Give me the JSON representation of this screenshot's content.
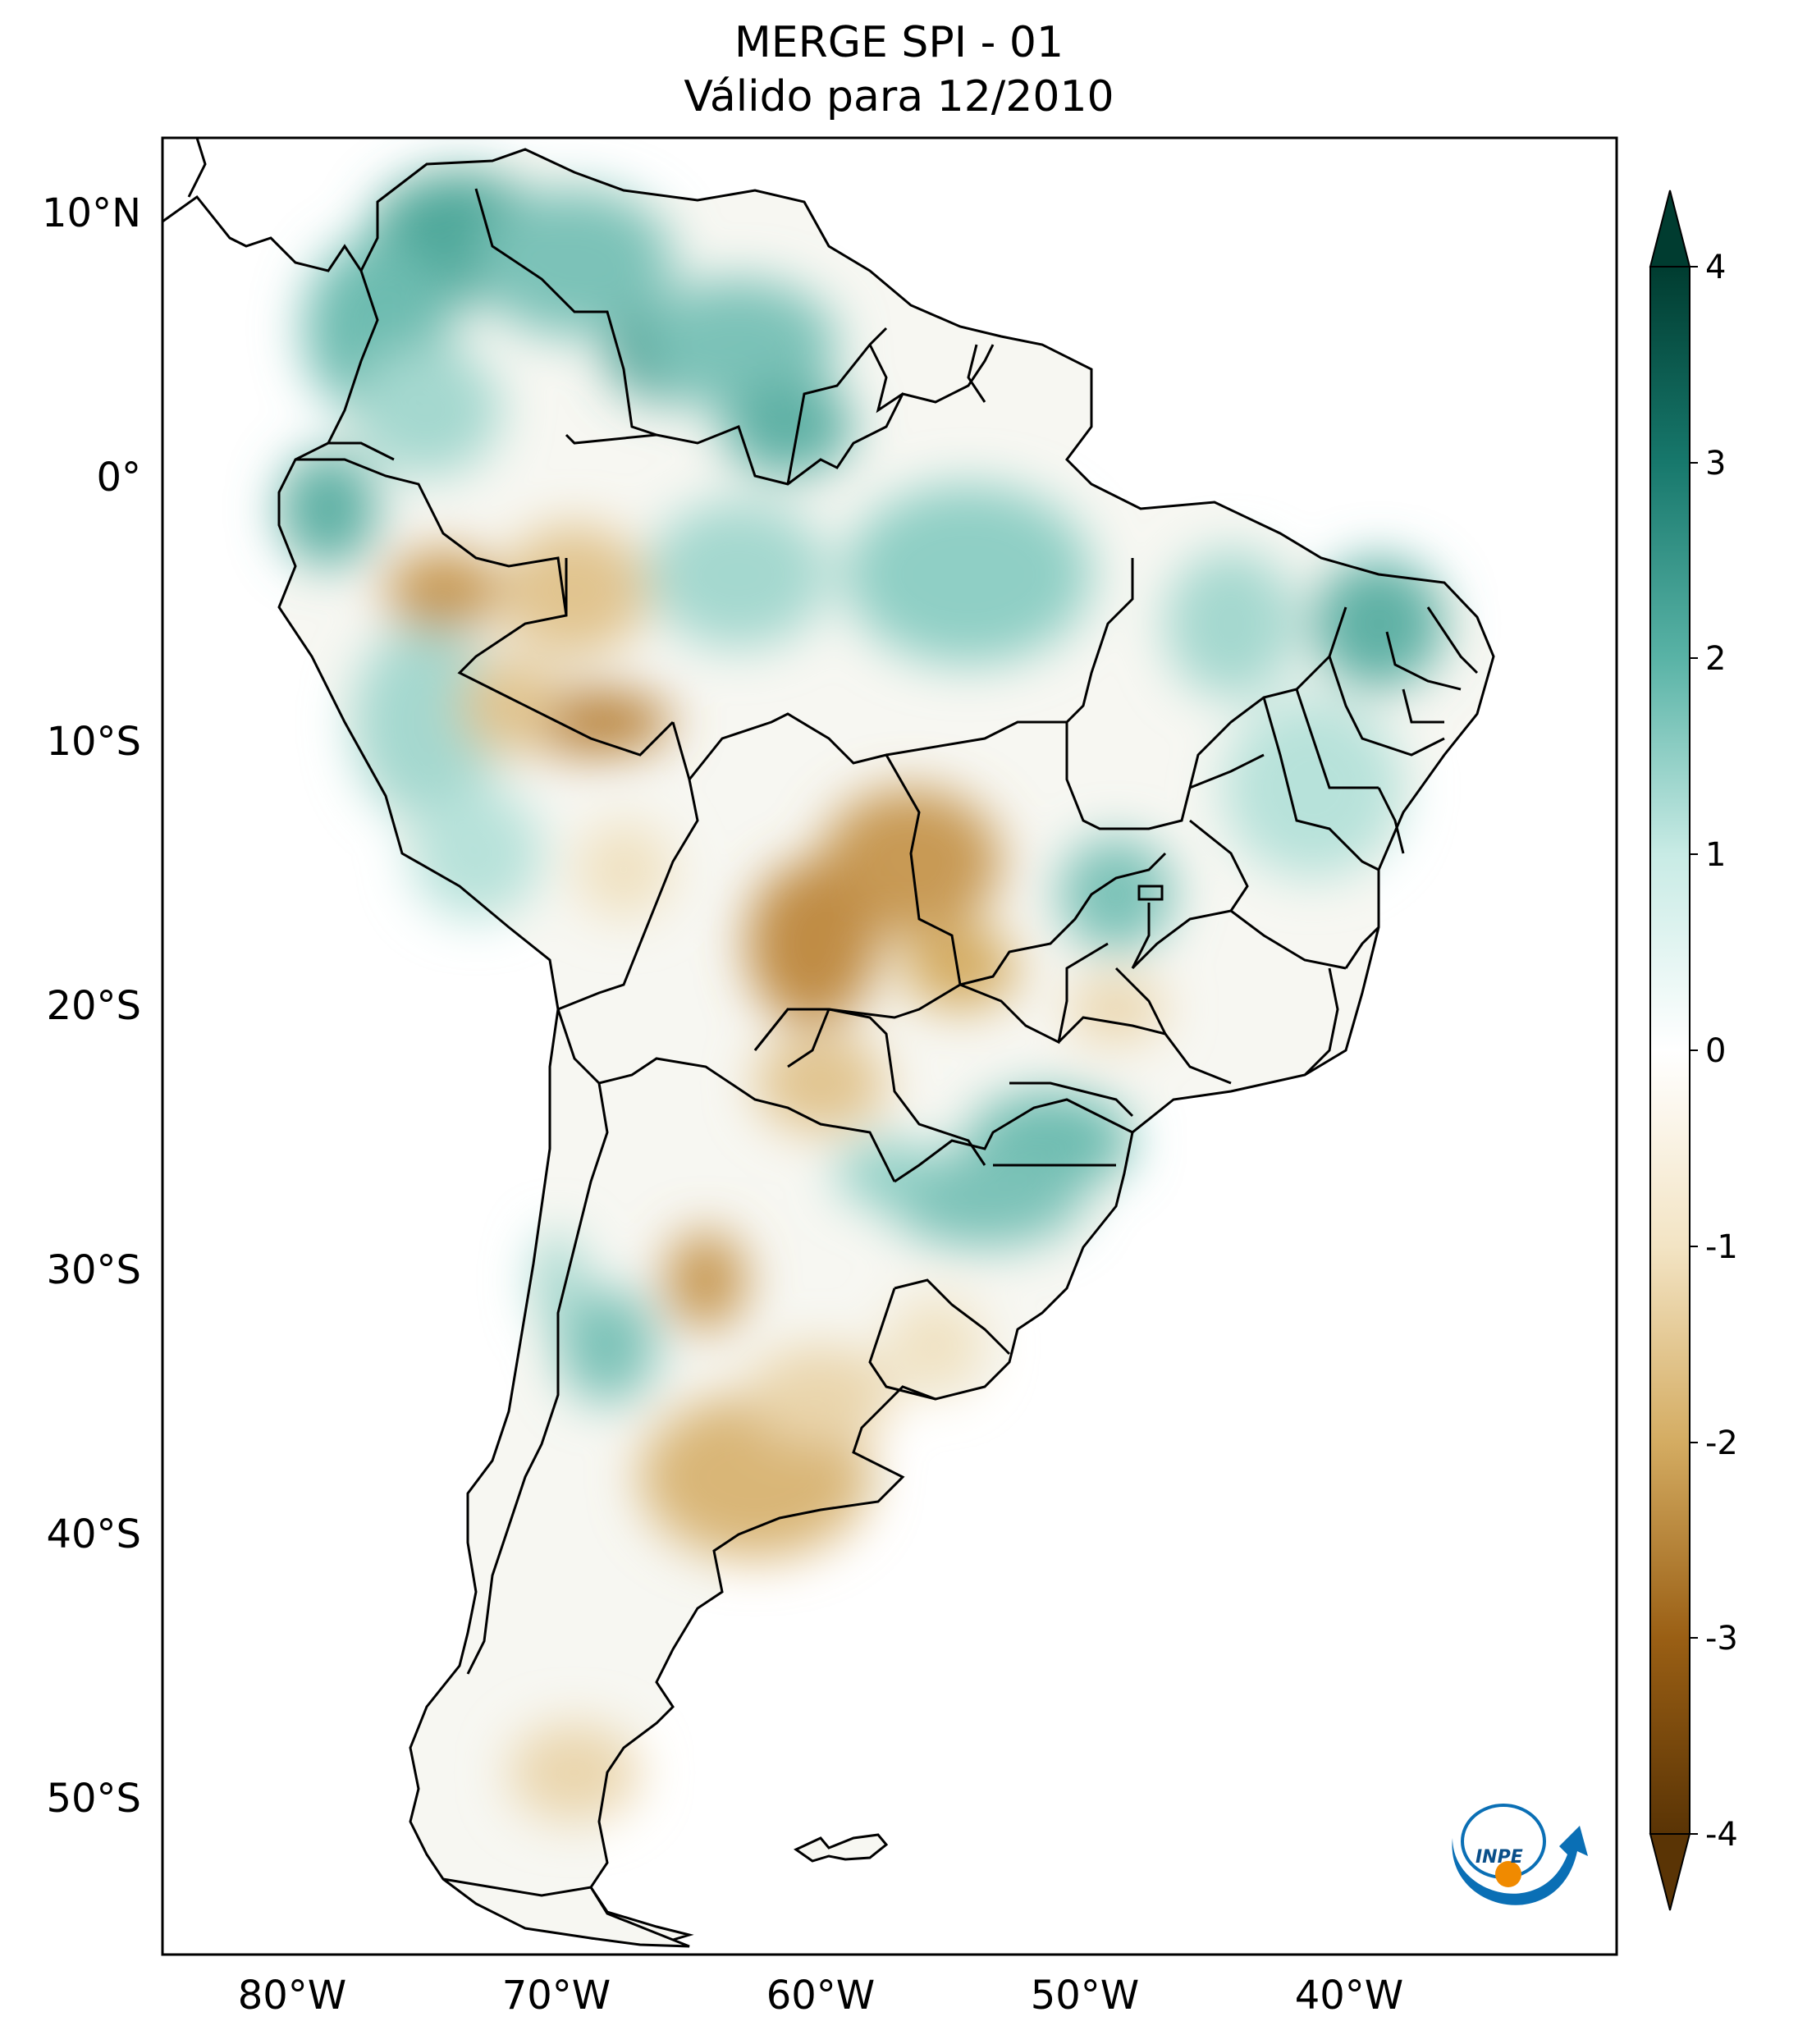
{
  "title": {
    "line1": "MERGE   SPI - 01",
    "line2": "Válido para 12/2010"
  },
  "map": {
    "region": "South America",
    "projection": "Plate Carree",
    "lon_range": [
      -85,
      -29
    ],
    "lat_range": [
      -56,
      13
    ],
    "lat_ticks": [
      {
        "value": 10,
        "label": "10°N"
      },
      {
        "value": 0,
        "label": "0°"
      },
      {
        "value": -10,
        "label": "10°S"
      },
      {
        "value": -20,
        "label": "20°S"
      },
      {
        "value": -30,
        "label": "30°S"
      },
      {
        "value": -40,
        "label": "40°S"
      },
      {
        "value": -50,
        "label": "50°S"
      }
    ],
    "lon_ticks": [
      {
        "value": -80,
        "label": "80°W"
      },
      {
        "value": -70,
        "label": "70°W"
      },
      {
        "value": -60,
        "label": "60°W"
      },
      {
        "value": -50,
        "label": "50°W"
      },
      {
        "value": -40,
        "label": "40°W"
      }
    ]
  },
  "colorbar": {
    "min": -4,
    "max": 4,
    "extend": "both",
    "ticks": [
      "4",
      "3",
      "2",
      "1",
      "0",
      "-1",
      "-2",
      "-3",
      "-4"
    ],
    "colors": {
      "neg4": "#5a3405",
      "neg3": "#9a5f14",
      "neg2": "#d4ac62",
      "neg1": "#f3e4c4",
      "zero": "#ffffff",
      "pos1": "#c8ebe5",
      "pos2": "#59b3a6",
      "pos3": "#17786c",
      "pos4": "#003c30"
    }
  },
  "logo": {
    "text": "INPE",
    "colors": {
      "blue": "#0a6fb5",
      "orange": "#f08a00"
    }
  }
}
